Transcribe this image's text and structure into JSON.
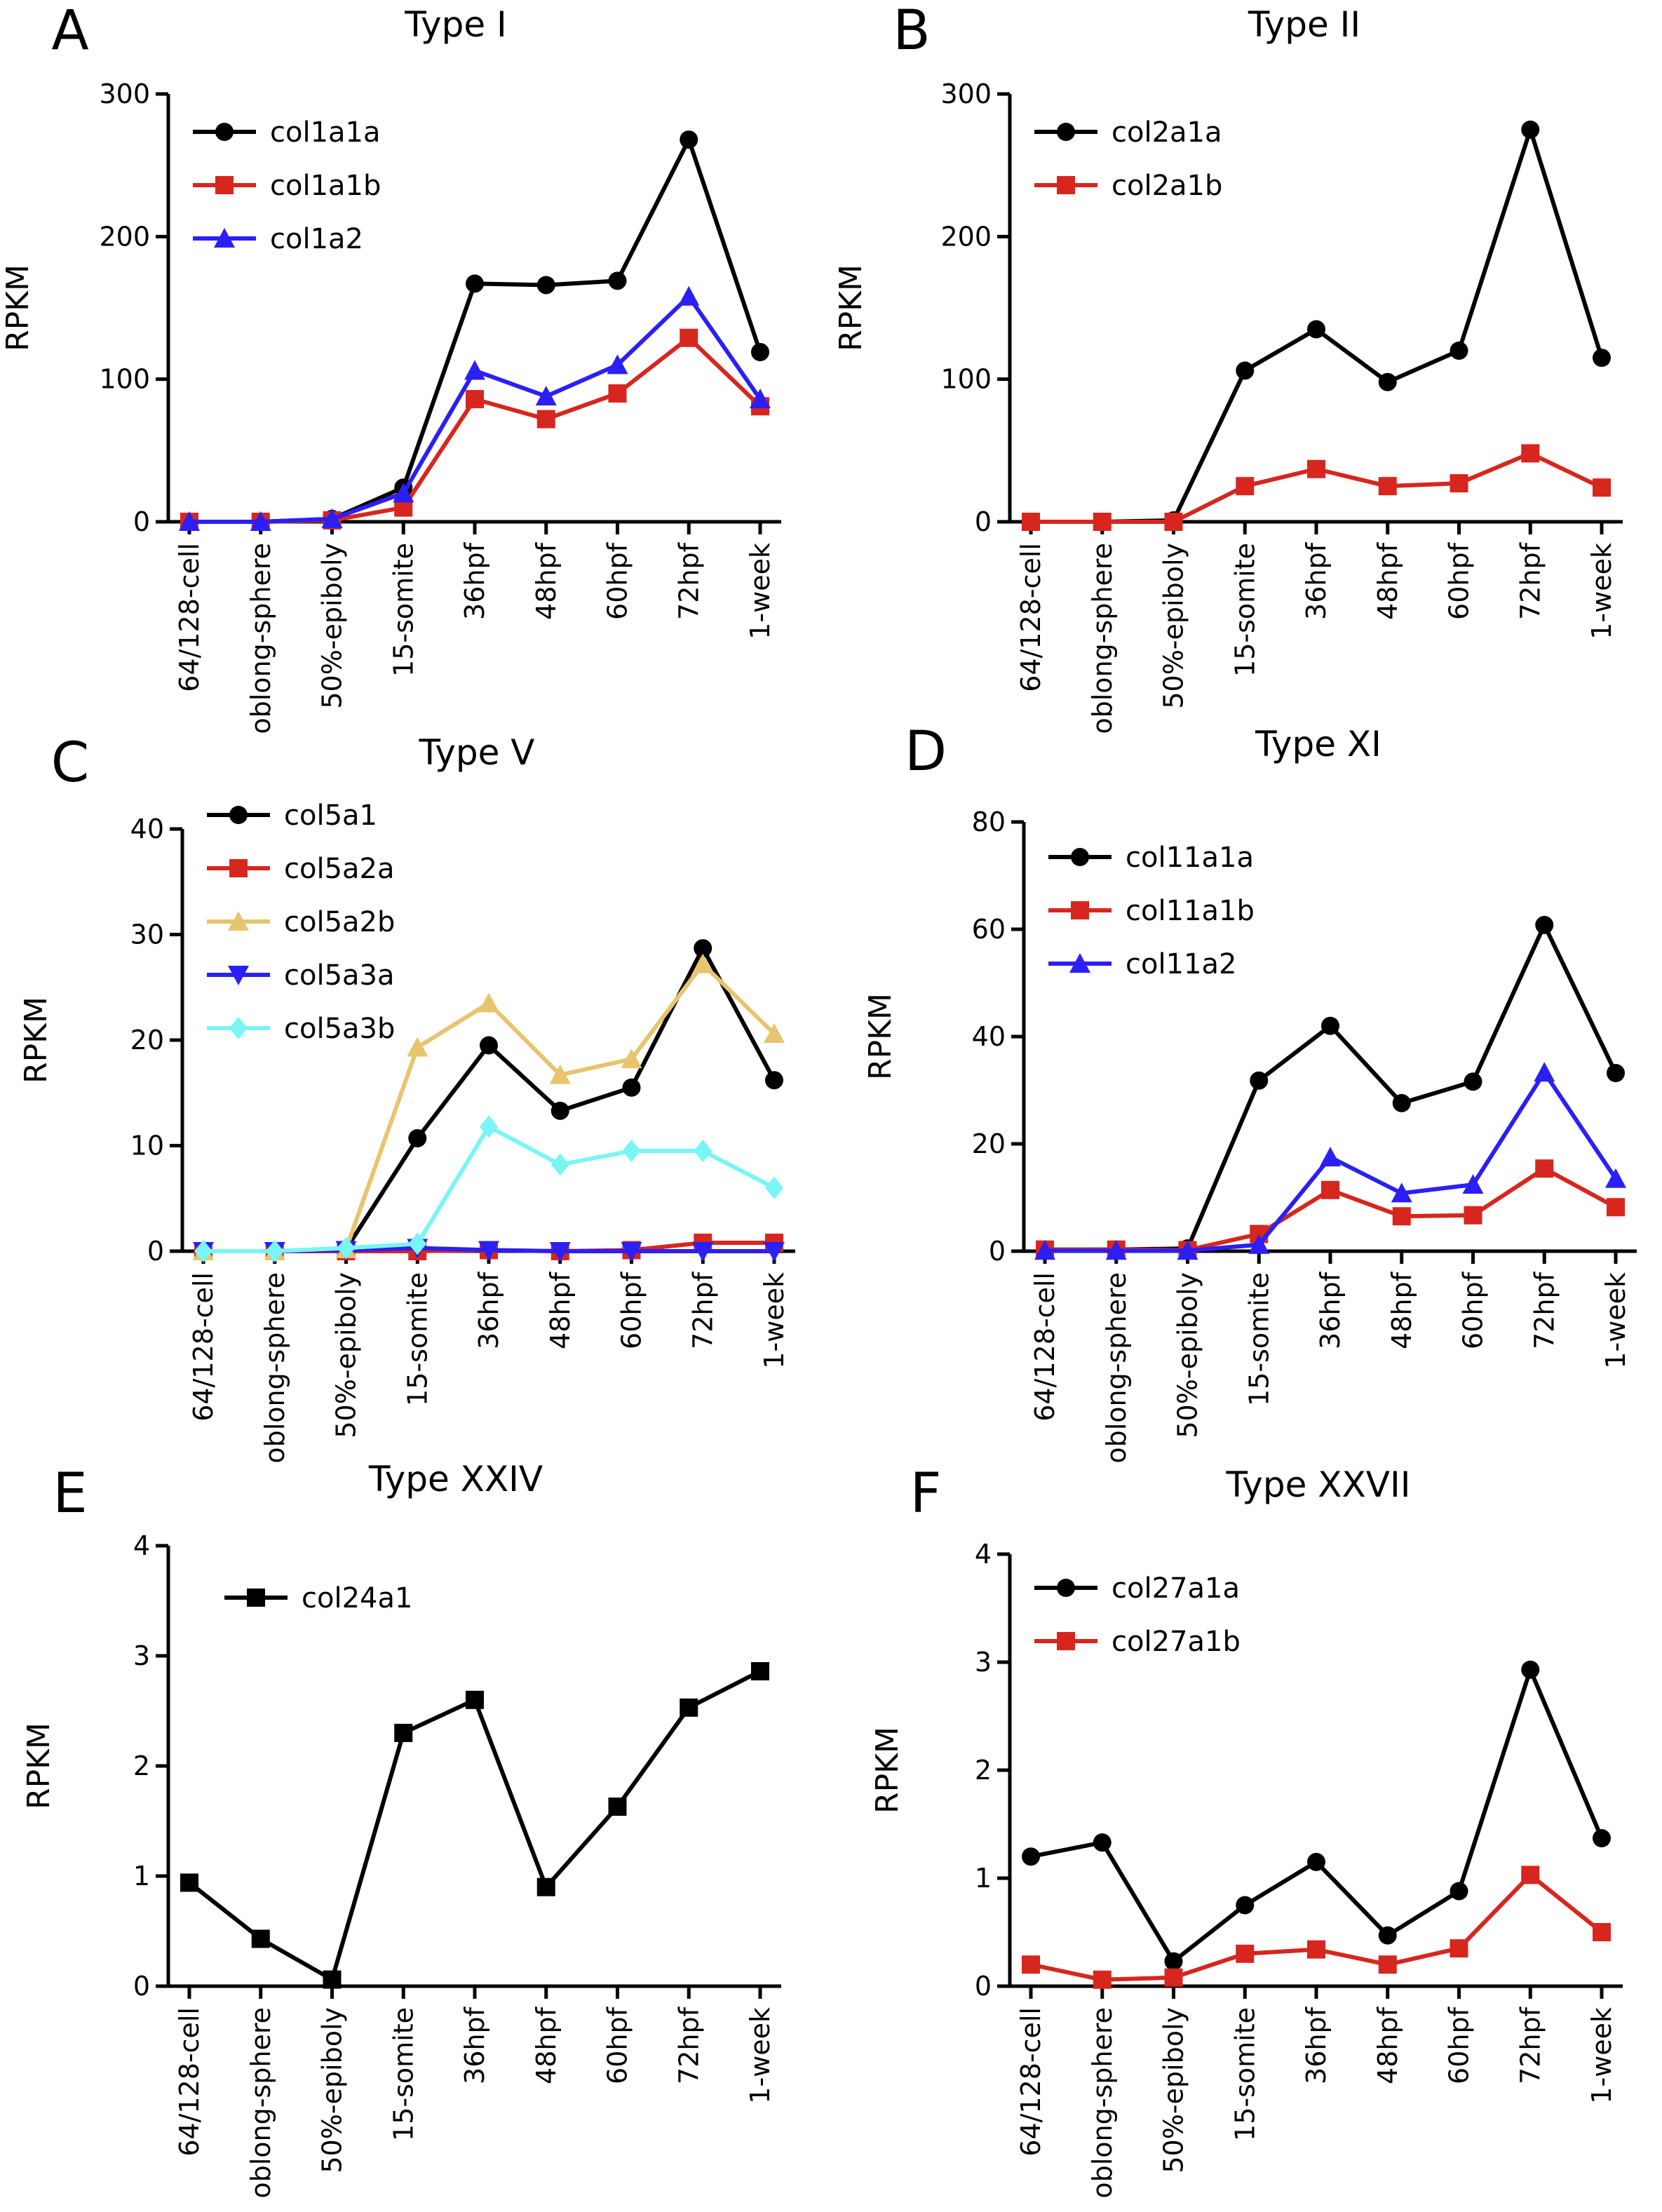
{
  "figure": {
    "panels_description_none": ""
  },
  "chart_data": [
    {
      "panel": "A",
      "title": "Type I",
      "type": "line",
      "ylabel": "RPKM",
      "xlabel": "",
      "ylim": [
        0,
        300
      ],
      "yticks": [
        "0",
        "100",
        "200",
        "300"
      ],
      "categories": [
        "64/128-cell",
        "oblong-sphere",
        "50%-epiboly",
        "15-somite",
        "36hpf",
        "48hpf",
        "60hpf",
        "72hpf",
        "1-week"
      ],
      "series": [
        {
          "name": "col1a1a",
          "color": "#000000",
          "marker": "circle",
          "values": [
            0,
            0,
            2,
            24,
            167,
            166,
            169,
            268,
            119
          ]
        },
        {
          "name": "col1a1b",
          "color": "#d7261e",
          "marker": "square",
          "values": [
            0,
            0,
            1,
            10,
            86,
            72,
            90,
            129,
            81
          ]
        },
        {
          "name": "col1a2",
          "color": "#2b1ff5",
          "marker": "triangle",
          "values": [
            0,
            0,
            2,
            20,
            106,
            88,
            110,
            158,
            86
          ]
        }
      ]
    },
    {
      "panel": "B",
      "title": "Type II",
      "type": "line",
      "ylabel": "RPKM",
      "xlabel": "",
      "ylim": [
        0,
        300
      ],
      "yticks": [
        "0",
        "100",
        "200",
        "300"
      ],
      "categories": [
        "64/128-cell",
        "oblong-sphere",
        "50%-epiboly",
        "15-somite",
        "36hpf",
        "48hpf",
        "60hpf",
        "72hpf",
        "1-week"
      ],
      "series": [
        {
          "name": "col2a1a",
          "color": "#000000",
          "marker": "circle",
          "values": [
            0,
            0,
            1,
            106,
            135,
            98,
            120,
            275,
            115
          ]
        },
        {
          "name": "col2a1b",
          "color": "#d7261e",
          "marker": "square",
          "values": [
            0,
            0,
            0,
            25,
            37,
            25,
            27,
            48,
            24
          ]
        }
      ]
    },
    {
      "panel": "C",
      "title": "Type V",
      "type": "line",
      "ylabel": "RPKM",
      "xlabel": "",
      "ylim": [
        0,
        40
      ],
      "yticks": [
        "0",
        "10",
        "20",
        "30",
        "40"
      ],
      "categories": [
        "64/128-cell",
        "oblong-sphere",
        "50%-epiboly",
        "15-somite",
        "36hpf",
        "48hpf",
        "60hpf",
        "72hpf",
        "1-week"
      ],
      "series": [
        {
          "name": "col5a1",
          "color": "#000000",
          "marker": "circle",
          "values": [
            0,
            0,
            0.2,
            10.7,
            19.5,
            13.3,
            15.5,
            28.7,
            16.2
          ]
        },
        {
          "name": "col5a2a",
          "color": "#d7261e",
          "marker": "square",
          "values": [
            0,
            0,
            0,
            0,
            0.1,
            0,
            0.1,
            0.8,
            0.8
          ]
        },
        {
          "name": "col5a2b",
          "color": "#e8c46e",
          "marker": "triangle",
          "values": [
            0,
            0,
            0.2,
            19.3,
            23.5,
            16.7,
            18.2,
            27.2,
            20.6
          ]
        },
        {
          "name": "col5a3a",
          "color": "#2b1ff5",
          "marker": "triangle-down",
          "values": [
            0,
            0,
            0.1,
            0.3,
            0.1,
            0,
            0,
            0,
            0
          ]
        },
        {
          "name": "col5a3b",
          "color": "#7af5f5",
          "marker": "diamond",
          "values": [
            0,
            0,
            0.3,
            0.7,
            11.8,
            8.2,
            9.5,
            9.5,
            6
          ]
        }
      ]
    },
    {
      "panel": "D",
      "title": "Type XI",
      "type": "line",
      "ylabel": "RPKM",
      "xlabel": "",
      "ylim": [
        0,
        80
      ],
      "yticks": [
        "0",
        "20",
        "40",
        "60",
        "80"
      ],
      "categories": [
        "64/128-cell",
        "oblong-sphere",
        "50%-epiboly",
        "15-somite",
        "36hpf",
        "48hpf",
        "60hpf",
        "72hpf",
        "1-week"
      ],
      "series": [
        {
          "name": "col11a1a",
          "color": "#000000",
          "marker": "circle",
          "values": [
            0.3,
            0.3,
            0.5,
            31.8,
            42,
            27.6,
            31.6,
            60.8,
            33.2
          ]
        },
        {
          "name": "col11a1b",
          "color": "#d7261e",
          "marker": "square",
          "values": [
            0.3,
            0.3,
            0.2,
            3.2,
            11.4,
            6.5,
            6.7,
            15.4,
            8.2
          ]
        },
        {
          "name": "col11a2",
          "color": "#2b1ff5",
          "marker": "triangle",
          "values": [
            0.1,
            0.1,
            0.1,
            1.2,
            17.5,
            10.8,
            12.4,
            33.3,
            13.5
          ]
        }
      ]
    },
    {
      "panel": "E",
      "title": "Type XXIV",
      "type": "line",
      "ylabel": "RPKM",
      "xlabel": "",
      "ylim": [
        0,
        4
      ],
      "yticks": [
        "0",
        "1",
        "2",
        "3",
        "4"
      ],
      "categories": [
        "64/128-cell",
        "oblong-sphere",
        "50%-epiboly",
        "15-somite",
        "36hpf",
        "48hpf",
        "60hpf",
        "72hpf",
        "1-week"
      ],
      "series": [
        {
          "name": "col24a1",
          "color": "#000000",
          "marker": "square",
          "values": [
            0.94,
            0.43,
            0.06,
            2.3,
            2.6,
            0.9,
            1.63,
            2.53,
            2.86
          ]
        }
      ]
    },
    {
      "panel": "F",
      "title": "Type XXVII",
      "type": "line",
      "ylabel": "RPKM",
      "xlabel": "",
      "ylim": [
        0,
        4
      ],
      "yticks": [
        "0",
        "1",
        "2",
        "3",
        "4"
      ],
      "categories": [
        "64/128-cell",
        "oblong-sphere",
        "50%-epiboly",
        "15-somite",
        "36hpf",
        "48hpf",
        "60hpf",
        "72hpf",
        "1-week"
      ],
      "series": [
        {
          "name": "col27a1a",
          "color": "#000000",
          "marker": "circle",
          "values": [
            1.2,
            1.33,
            0.23,
            0.75,
            1.15,
            0.47,
            0.88,
            2.93,
            1.37
          ]
        },
        {
          "name": "col27a1b",
          "color": "#d7261e",
          "marker": "square",
          "values": [
            0.2,
            0.06,
            0.08,
            0.3,
            0.34,
            0.2,
            0.35,
            1.03,
            0.5
          ]
        }
      ]
    }
  ]
}
